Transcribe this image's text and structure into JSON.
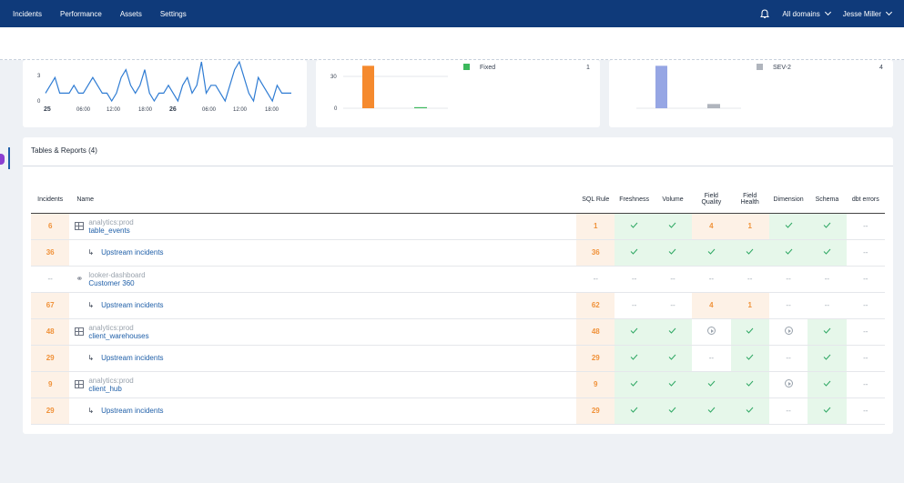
{
  "nav": {
    "items": [
      "Incidents",
      "Performance",
      "Assets",
      "Settings"
    ],
    "domain_selector": "All domains",
    "user": "Jesse Miller"
  },
  "line_chart": {
    "y_ticks": [
      "3",
      "0"
    ],
    "x_ticks": [
      "25",
      "06:00",
      "12:00",
      "18:00",
      "26",
      "06:00",
      "12:00",
      "18:00"
    ],
    "values": [
      1,
      2,
      3,
      1,
      1,
      1,
      2,
      1,
      1,
      2,
      3,
      2,
      1,
      1,
      0,
      1,
      3,
      4,
      2,
      1,
      2,
      4,
      1,
      0,
      1,
      1,
      2,
      1,
      0,
      2,
      3,
      1,
      2,
      5,
      1,
      2,
      2,
      1,
      0,
      2,
      4,
      5,
      3,
      1,
      0,
      3,
      2,
      1,
      0,
      2,
      1,
      1,
      1
    ]
  },
  "status_chart": {
    "y_ticks": [
      "30",
      "0"
    ],
    "bars": [
      {
        "value": 40,
        "color": "#f58a2e"
      },
      {
        "value": 1,
        "color": "#3cb85c"
      }
    ],
    "legend": [
      {
        "label": "Fixed",
        "value": "1",
        "color": "#3cb85c"
      }
    ]
  },
  "severity_chart": {
    "bars": [
      {
        "value": 40,
        "color": "#96a6e4"
      },
      {
        "value": 4,
        "color": "#b0b5bd"
      }
    ],
    "legend": [
      {
        "label": "SEV-2",
        "value": "4",
        "color": "#b0b5bd"
      }
    ]
  },
  "tables": {
    "title": "Tables & Reports (4)",
    "headers": {
      "incidents": "Incidents",
      "name": "Name",
      "sql_rule": "SQL Rule",
      "freshness": "Freshness",
      "volume": "Volume",
      "field_quality_1": "Field",
      "field_quality_2": "Quality",
      "field_health_1": "Field",
      "field_health_2": "Health",
      "dimension": "Dimension",
      "schema": "Schema",
      "dbt_errors": "dbt errors"
    },
    "rows": [
      {
        "incidents": "6",
        "schema": "analytics:prod",
        "name": "table_events",
        "sql": "1",
        "freshness": "check",
        "volume": "check",
        "fq": "4",
        "fh": "1",
        "dim": "check",
        "sch": "check",
        "dbt": "--"
      },
      {
        "incidents": "36",
        "upstream": "Upstream incidents",
        "sql": "36",
        "freshness": "check",
        "volume": "check",
        "fq": "check",
        "fh": "check",
        "dim": "check",
        "sch": "check",
        "dbt": "--"
      },
      {
        "incidents": "--",
        "schema": "looker-dashboard",
        "name": "Customer 360",
        "sql": "--",
        "freshness": "--",
        "volume": "--",
        "fq": "--",
        "fh": "--",
        "dim": "--",
        "sch": "--",
        "dbt": "--"
      },
      {
        "incidents": "67",
        "upstream": "Upstream incidents",
        "sql": "62",
        "freshness": "--",
        "volume": "--",
        "fq": "4",
        "fh": "1",
        "dim": "--",
        "sch": "--",
        "dbt": "--"
      },
      {
        "incidents": "48",
        "schema": "analytics:prod",
        "name": "client_warehouses",
        "sql": "48",
        "freshness": "check",
        "volume": "check",
        "fq": "play",
        "fh": "check",
        "dim": "play",
        "sch": "check",
        "dbt": "--"
      },
      {
        "incidents": "29",
        "upstream": "Upstream incidents",
        "sql": "29",
        "freshness": "check",
        "volume": "check",
        "fq": "--",
        "fh": "check",
        "dim": "--",
        "sch": "check",
        "dbt": "--"
      },
      {
        "incidents": "9",
        "schema": "analytics:prod",
        "name": "client_hub",
        "sql": "9",
        "freshness": "check",
        "volume": "check",
        "fq": "check",
        "fh": "check",
        "dim": "play",
        "sch": "check",
        "dbt": "--"
      },
      {
        "incidents": "29",
        "upstream": "Upstream incidents",
        "sql": "29",
        "freshness": "check",
        "volume": "check",
        "fq": "check",
        "fh": "check",
        "dim": "--",
        "sch": "check",
        "dbt": "--"
      }
    ]
  }
}
